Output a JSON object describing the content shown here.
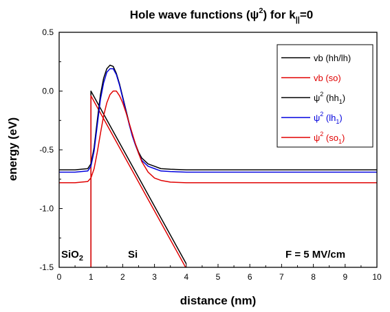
{
  "chart_data": {
    "type": "line",
    "title_parts": {
      "main": "Hole wave functions (",
      "psi": "ψ",
      "sup": "2",
      "mid": ") for k",
      "sub": "||",
      "end": "=0"
    },
    "xlabel": "distance (nm)",
    "ylabel": "energy (eV)",
    "xlim": [
      0,
      10
    ],
    "ylim": [
      -1.5,
      0.5
    ],
    "xticks": [
      0,
      1,
      2,
      3,
      4,
      5,
      6,
      7,
      8,
      9,
      10
    ],
    "yticks": [
      0.5,
      0.0,
      -0.5,
      -1.0,
      -1.5
    ],
    "ytick_labels": [
      "0.5",
      "0.0",
      "-0.5",
      "-1.0",
      "-1.5"
    ],
    "grid": false,
    "legend_position": "top-right",
    "series": [
      {
        "name": "vb (hh/lh)",
        "color": "#000000",
        "x": [
          1.0,
          1.0,
          4.0
        ],
        "y": [
          -1.5,
          0.0,
          -1.47
        ]
      },
      {
        "name": "vb (so)",
        "color": "#e00000",
        "x": [
          1.0,
          1.0,
          4.0
        ],
        "y": [
          -1.5,
          -0.04,
          -1.51
        ]
      },
      {
        "name": "hh1",
        "color": "#000000",
        "x": [
          0,
          0.5,
          0.9,
          1.0,
          1.1,
          1.2,
          1.3,
          1.4,
          1.5,
          1.6,
          1.7,
          1.8,
          1.9,
          2.0,
          2.1,
          2.2,
          2.3,
          2.4,
          2.5,
          2.6,
          2.8,
          3.0,
          3.2,
          3.5,
          4.0,
          6.0,
          8.0,
          10.0
        ],
        "y": [
          -0.67,
          -0.67,
          -0.66,
          -0.62,
          -0.48,
          -0.25,
          -0.03,
          0.11,
          0.19,
          0.22,
          0.21,
          0.15,
          0.06,
          -0.05,
          -0.16,
          -0.27,
          -0.37,
          -0.45,
          -0.52,
          -0.57,
          -0.62,
          -0.64,
          -0.66,
          -0.665,
          -0.67,
          -0.67,
          -0.67,
          -0.67
        ]
      },
      {
        "name": "lh1",
        "color": "#0000dd",
        "x": [
          0,
          0.5,
          0.9,
          1.0,
          1.1,
          1.2,
          1.3,
          1.4,
          1.5,
          1.6,
          1.7,
          1.8,
          1.9,
          2.0,
          2.1,
          2.2,
          2.3,
          2.4,
          2.5,
          2.6,
          2.8,
          3.0,
          3.2,
          3.5,
          4.0,
          6.0,
          8.0,
          10.0
        ],
        "y": [
          -0.69,
          -0.69,
          -0.68,
          -0.64,
          -0.51,
          -0.29,
          -0.07,
          0.07,
          0.16,
          0.19,
          0.19,
          0.14,
          0.05,
          -0.06,
          -0.17,
          -0.28,
          -0.38,
          -0.46,
          -0.53,
          -0.59,
          -0.64,
          -0.66,
          -0.68,
          -0.685,
          -0.69,
          -0.69,
          -0.69,
          -0.69
        ]
      },
      {
        "name": "so1",
        "color": "#e00000",
        "x": [
          0,
          0.5,
          0.9,
          1.0,
          1.1,
          1.2,
          1.3,
          1.4,
          1.5,
          1.6,
          1.7,
          1.8,
          1.9,
          2.0,
          2.1,
          2.2,
          2.3,
          2.4,
          2.5,
          2.6,
          2.8,
          3.0,
          3.2,
          3.5,
          4.0,
          6.0,
          8.0,
          10.0
        ],
        "y": [
          -0.78,
          -0.78,
          -0.77,
          -0.74,
          -0.66,
          -0.52,
          -0.36,
          -0.21,
          -0.1,
          -0.03,
          0.0,
          0.0,
          -0.04,
          -0.1,
          -0.18,
          -0.27,
          -0.36,
          -0.45,
          -0.53,
          -0.6,
          -0.69,
          -0.74,
          -0.76,
          -0.775,
          -0.78,
          -0.78,
          -0.78,
          -0.78
        ]
      }
    ],
    "legend": [
      {
        "label": "vb (hh/lh)",
        "color": "#000000",
        "kind": "plain"
      },
      {
        "label": "vb (so)",
        "color": "#e00000",
        "kind": "plain"
      },
      {
        "psi": "ψ",
        "sup": "2",
        "open": " (hh",
        "sub": "1",
        "close": ")",
        "color": "#000000",
        "kind": "psi"
      },
      {
        "psi": "ψ",
        "sup": "2",
        "open": " (lh",
        "sub": "1",
        "close": ")",
        "color": "#0000dd",
        "kind": "psi"
      },
      {
        "psi": "ψ",
        "sup": "2",
        "open": " (so",
        "sub": "1",
        "close": ")",
        "color": "#e00000",
        "kind": "psi"
      }
    ],
    "annotations": {
      "sio2_main": "SiO",
      "sio2_sub": "2",
      "si": "Si",
      "field": "F = 5 MV/cm"
    }
  }
}
